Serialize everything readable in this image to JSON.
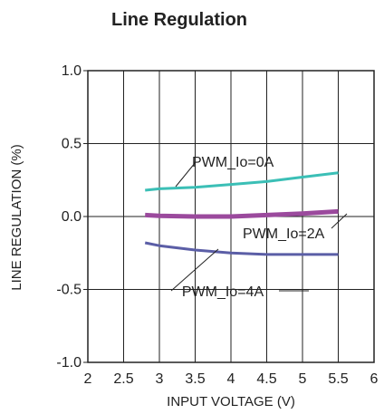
{
  "chart_data": {
    "type": "line",
    "title": "Line Regulation",
    "xlabel": "INPUT VOLTAGE (V)",
    "ylabel": "LINE REGULATION (%)",
    "xlim": [
      2,
      6
    ],
    "ylim": [
      -1.0,
      1.0
    ],
    "x_ticks": [
      2,
      2.5,
      3,
      3.5,
      4,
      4.5,
      5,
      5.5,
      6
    ],
    "x_tick_labels": [
      "2",
      "2.5",
      "3",
      "3.5",
      "4",
      "4.5",
      "5",
      "5.5",
      "6"
    ],
    "y_ticks": [
      1.0,
      0.5,
      0.0,
      -0.5,
      -1.0
    ],
    "y_tick_labels": [
      "1.0",
      "0.5",
      "0.0",
      "-0.5",
      "-1.0"
    ],
    "grid": true,
    "legend": "inline-labels",
    "series": [
      {
        "name": "PWM_Io=0A",
        "color": "#3bbfb6",
        "x": [
          2.8,
          3.0,
          3.5,
          4.0,
          4.5,
          5.0,
          5.5
        ],
        "y": [
          0.18,
          0.19,
          0.2,
          0.22,
          0.24,
          0.27,
          0.3
        ]
      },
      {
        "name": "PWM_Io=2A",
        "color": "#9b4a9d",
        "x": [
          2.8,
          3.0,
          3.5,
          4.0,
          4.5,
          5.0,
          5.5
        ],
        "y": [
          0.01,
          0.005,
          0.0,
          0.0,
          0.01,
          0.02,
          0.035
        ]
      },
      {
        "name": "PWM_Io=4A",
        "color": "#5b5ea6",
        "x": [
          2.8,
          3.0,
          3.5,
          4.0,
          4.5,
          5.0,
          5.5
        ],
        "y": [
          -0.18,
          -0.2,
          -0.23,
          -0.25,
          -0.26,
          -0.26,
          -0.26
        ]
      }
    ]
  }
}
